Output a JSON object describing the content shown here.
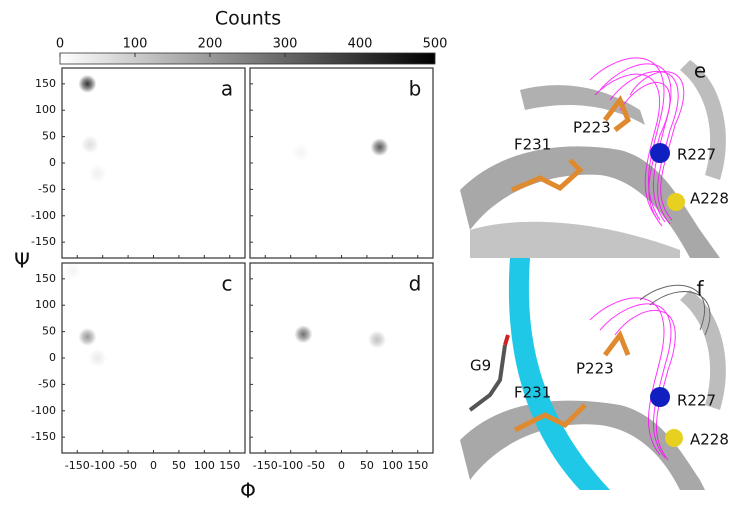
{
  "colorbar": {
    "title": "Counts",
    "lim": [
      0,
      500
    ],
    "ticks": [
      0,
      100,
      200,
      300,
      400,
      500
    ]
  },
  "axis_labels": {
    "x": "Φ",
    "y": "Ψ"
  },
  "chart_data": [
    {
      "type": "heatmap",
      "panel_label": "a",
      "x": [
        -130,
        -125,
        -110
      ],
      "y": [
        150,
        35,
        -20
      ],
      "values": [
        400,
        60,
        30
      ],
      "xlim": [
        -180,
        180
      ],
      "ylim": [
        -180,
        180
      ],
      "xticks": [
        -150,
        -100,
        -50,
        0,
        50,
        100,
        150
      ],
      "yticks": [
        -150,
        -100,
        -50,
        0,
        50,
        100,
        150
      ]
    },
    {
      "type": "heatmap",
      "panel_label": "b",
      "x": [
        75,
        -80
      ],
      "y": [
        30,
        20
      ],
      "values": [
        320,
        20
      ],
      "xlim": [
        -180,
        180
      ],
      "ylim": [
        -180,
        180
      ],
      "xticks": [
        -150,
        -100,
        -50,
        0,
        50,
        100,
        150
      ],
      "yticks": [
        -150,
        -100,
        -50,
        0,
        50,
        100,
        150
      ]
    },
    {
      "type": "heatmap",
      "panel_label": "c",
      "x": [
        -130,
        -110,
        -160
      ],
      "y": [
        40,
        0,
        165
      ],
      "values": [
        200,
        40,
        20
      ],
      "xlim": [
        -180,
        180
      ],
      "ylim": [
        -180,
        180
      ],
      "xticks": [
        -150,
        -100,
        -50,
        0,
        50,
        100,
        150
      ],
      "yticks": [
        -150,
        -100,
        -50,
        0,
        50,
        100,
        150
      ]
    },
    {
      "type": "heatmap",
      "panel_label": "d",
      "x": [
        -75,
        70
      ],
      "y": [
        45,
        35
      ],
      "values": [
        280,
        120
      ],
      "xlim": [
        -180,
        180
      ],
      "ylim": [
        -180,
        180
      ],
      "xticks": [
        -150,
        -100,
        -50,
        0,
        50,
        100,
        150
      ],
      "yticks": [
        -150,
        -100,
        -50,
        0,
        50,
        100,
        150
      ]
    }
  ],
  "structures": [
    {
      "panel_label": "e",
      "residues": [
        "P223",
        "F231",
        "R227",
        "A228"
      ]
    },
    {
      "panel_label": "f",
      "residues": [
        "G9",
        "P223",
        "F231",
        "R227",
        "A228"
      ]
    }
  ]
}
